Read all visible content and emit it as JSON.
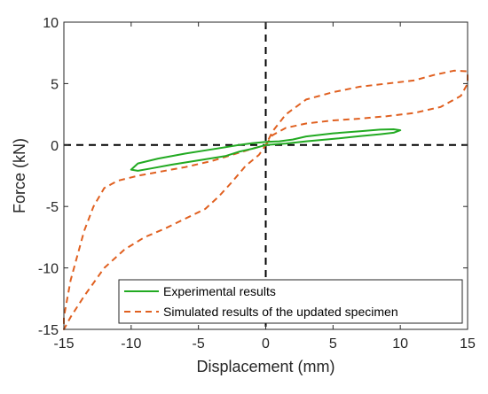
{
  "chart_data": {
    "type": "line",
    "title": "",
    "xlabel": "Displacement (mm)",
    "ylabel": "Force (kN)",
    "xlim": [
      -15,
      15
    ],
    "ylim": [
      -15,
      10
    ],
    "xticks": [
      -15,
      -10,
      -5,
      0,
      5,
      10,
      15
    ],
    "yticks": [
      -15,
      -10,
      -5,
      0,
      5,
      10
    ],
    "grid": false,
    "legend_position": "bottom-right",
    "reference_lines": {
      "x": 0,
      "y": 0,
      "style": "dashed",
      "color": "#000000"
    },
    "series": [
      {
        "name": "Experimental results",
        "color": "#22aa22",
        "style": "solid",
        "points": [
          [
            0,
            0
          ],
          [
            1.5,
            0.12
          ],
          [
            3,
            0.3
          ],
          [
            5,
            0.5
          ],
          [
            7,
            0.72
          ],
          [
            8.5,
            0.88
          ],
          [
            9.5,
            1.0
          ],
          [
            10,
            1.2
          ],
          [
            9.5,
            1.28
          ],
          [
            8.5,
            1.25
          ],
          [
            7,
            1.12
          ],
          [
            5,
            0.95
          ],
          [
            3,
            0.7
          ],
          [
            2,
            0.45
          ],
          [
            1,
            0.3
          ],
          [
            0,
            0.25
          ],
          [
            -1,
            0.15
          ],
          [
            -2,
            0.0
          ],
          [
            -4,
            -0.35
          ],
          [
            -6,
            -0.7
          ],
          [
            -8,
            -1.1
          ],
          [
            -9.5,
            -1.5
          ],
          [
            -10,
            -2.0
          ],
          [
            -9.5,
            -2.1
          ],
          [
            -8.5,
            -1.9
          ],
          [
            -7,
            -1.6
          ],
          [
            -5,
            -1.25
          ],
          [
            -3,
            -0.9
          ],
          [
            -2,
            -0.55
          ],
          [
            -1,
            -0.3
          ],
          [
            0,
            0
          ]
        ]
      },
      {
        "name": "Simulated results of the updated specimen",
        "color": "#e06020",
        "style": "dashed",
        "points": [
          [
            0,
            0
          ],
          [
            0.5,
            0.8
          ],
          [
            1.5,
            1.4
          ],
          [
            3,
            1.75
          ],
          [
            5,
            2.0
          ],
          [
            7,
            2.15
          ],
          [
            9,
            2.35
          ],
          [
            11,
            2.6
          ],
          [
            13,
            3.1
          ],
          [
            14.5,
            4.0
          ],
          [
            15,
            5.0
          ],
          [
            15,
            6.0
          ],
          [
            14,
            6.05
          ],
          [
            12.5,
            5.7
          ],
          [
            11,
            5.25
          ],
          [
            9,
            5.0
          ],
          [
            7,
            4.75
          ],
          [
            5,
            4.3
          ],
          [
            3,
            3.7
          ],
          [
            1.5,
            2.5
          ],
          [
            0.5,
            1.1
          ],
          [
            0,
            0
          ],
          [
            -0.5,
            -0.8
          ],
          [
            -1.5,
            -1.7
          ],
          [
            -2.5,
            -3.0
          ],
          [
            -3.5,
            -4.2
          ],
          [
            -4.5,
            -5.2
          ],
          [
            -6,
            -6.0
          ],
          [
            -7.5,
            -6.8
          ],
          [
            -9,
            -7.5
          ],
          [
            -10.5,
            -8.5
          ],
          [
            -12,
            -10.0
          ],
          [
            -13.5,
            -12.3
          ],
          [
            -14.5,
            -14.0
          ],
          [
            -15,
            -15.0
          ],
          [
            -15,
            -14.0
          ],
          [
            -14.5,
            -11.0
          ],
          [
            -13.5,
            -7.0
          ],
          [
            -12.8,
            -5.0
          ],
          [
            -12,
            -3.5
          ],
          [
            -11,
            -2.9
          ],
          [
            -9.5,
            -2.5
          ],
          [
            -8,
            -2.2
          ],
          [
            -6,
            -1.8
          ],
          [
            -4,
            -1.3
          ],
          [
            -2.5,
            -0.8
          ],
          [
            -1,
            -0.3
          ],
          [
            0,
            0
          ]
        ]
      }
    ]
  }
}
